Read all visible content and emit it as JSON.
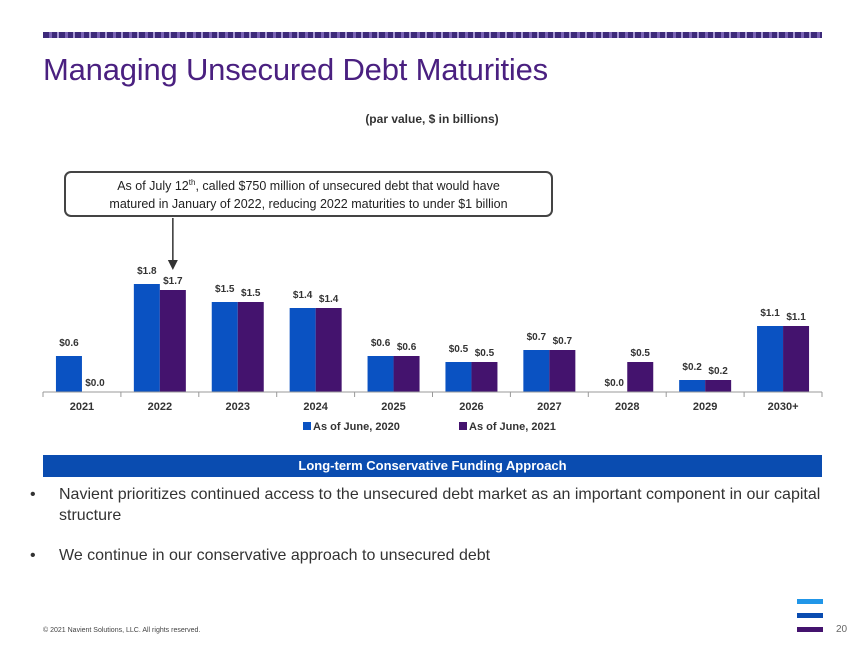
{
  "slide": {
    "title": "Managing Unsecured Debt Maturities",
    "subtitle": "(par value, $ in billions)"
  },
  "callout": {
    "line1_prefix": "As of July 12",
    "line1_sup": "th",
    "line1_suffix": ", called $750 million of unsecured debt that would have",
    "line2": "matured in January of 2022, reducing 2022 maturities to under $1 billion"
  },
  "chart_data": {
    "type": "bar",
    "categories": [
      "2021",
      "2022",
      "2023",
      "2024",
      "2025",
      "2026",
      "2027",
      "2028",
      "2029",
      "2030+"
    ],
    "series": [
      {
        "name": "As of June, 2020",
        "color": "#0a52c2",
        "values": [
          0.6,
          1.8,
          1.5,
          1.4,
          0.6,
          0.5,
          0.7,
          0.0,
          0.2,
          1.1
        ],
        "labels": [
          "$0.6",
          "$1.8",
          "$1.5",
          "$1.4",
          "$0.6",
          "$0.5",
          "$0.7",
          "$0.0",
          "$0.2",
          "$1.1"
        ]
      },
      {
        "name": "As of June, 2021",
        "color": "#44136e",
        "values": [
          0.0,
          1.7,
          1.5,
          1.4,
          0.6,
          0.5,
          0.7,
          0.5,
          0.2,
          1.1
        ],
        "labels": [
          "$0.0",
          "$1.7",
          "$1.5",
          "$1.4",
          "$0.6",
          "$0.5",
          "$0.7",
          "$0.5",
          "$0.2",
          "$1.1"
        ]
      }
    ],
    "title": "",
    "xlabel": "",
    "ylabel": "",
    "ylim": [
      0,
      1.8
    ],
    "grid": false,
    "legend": "bottom-center"
  },
  "banner": {
    "text": "Long-term Conservative Funding Approach"
  },
  "bullets": [
    {
      "marker": "•",
      "text": "Navient prioritizes continued access to the unsecured debt market as an important component in our capital structure"
    },
    {
      "marker": "•",
      "text": "We continue in our conservative approach to unsecured debt"
    }
  ],
  "footer": {
    "copyright": "© 2021 Navient Solutions, LLC. All rights reserved.",
    "page_number": "20",
    "logo_colors": [
      "#2196e8",
      "#0a4cb0",
      "#44136e"
    ]
  }
}
